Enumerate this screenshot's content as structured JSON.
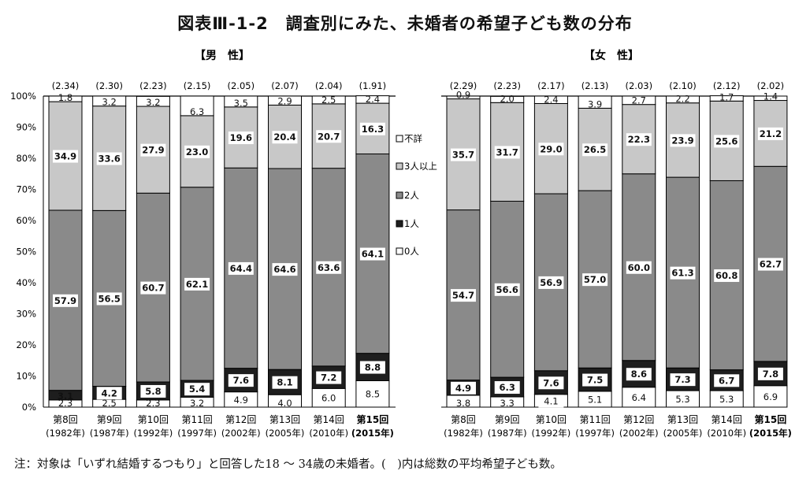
{
  "figure": {
    "title": "図表Ⅲ-1-2　調査別にみた、未婚者の希望子ども数の分布",
    "note": "注：対象は「いずれ結婚するつもり」と回答した18 ～ 34歳の未婚者。(　)内は総数の平均希望子ども数。"
  },
  "chart_data": {
    "type": "bar",
    "stacked": true,
    "percent": true,
    "y_ticks": [
      "0%",
      "10%",
      "20%",
      "30%",
      "40%",
      "50%",
      "60%",
      "70%",
      "80%",
      "90%",
      "100%"
    ],
    "ylim": [
      0,
      100
    ],
    "legend": [
      {
        "label": "不詳",
        "color": "#ffffff"
      },
      {
        "label": "3人以上",
        "color": "#c8c8c8"
      },
      {
        "label": "2人",
        "color": "#8a8a8a"
      },
      {
        "label": "1人",
        "color": "#1e1e1e"
      },
      {
        "label": "0人",
        "color": "#ffffff"
      }
    ],
    "panels": [
      {
        "name": "【男　性】",
        "categories": [
          {
            "line1": "第8回",
            "line2": "(1982年)",
            "bold": false
          },
          {
            "line1": "第9回",
            "line2": "(1987年)",
            "bold": false
          },
          {
            "line1": "第10回",
            "line2": "(1992年)",
            "bold": false
          },
          {
            "line1": "第11回",
            "line2": "(1997年)",
            "bold": false
          },
          {
            "line1": "第12回",
            "line2": "(2002年)",
            "bold": false
          },
          {
            "line1": "第13回",
            "line2": "(2005年)",
            "bold": false
          },
          {
            "line1": "第14回",
            "line2": "(2010年)",
            "bold": false
          },
          {
            "line1": "第15回",
            "line2": "(2015年)",
            "bold": true
          }
        ],
        "averages": [
          "(2.34)",
          "(2.30)",
          "(2.23)",
          "(2.15)",
          "(2.05)",
          "(2.07)",
          "(2.04)",
          "(1.91)"
        ],
        "series": [
          {
            "name": "0人",
            "values": [
              2.3,
              2.5,
              2.3,
              3.2,
              4.9,
              4.0,
              6.0,
              8.5
            ]
          },
          {
            "name": "1人",
            "values": [
              3.1,
              4.2,
              5.8,
              5.4,
              7.6,
              8.1,
              7.2,
              8.8
            ]
          },
          {
            "name": "2人",
            "values": [
              57.9,
              56.5,
              60.7,
              62.1,
              64.4,
              64.6,
              63.6,
              64.1
            ]
          },
          {
            "name": "3人以上",
            "values": [
              34.9,
              33.6,
              27.9,
              23.0,
              19.6,
              20.4,
              20.7,
              16.3
            ]
          },
          {
            "name": "不詳",
            "values": [
              1.8,
              3.2,
              3.2,
              6.3,
              3.5,
              2.9,
              2.5,
              2.4
            ]
          }
        ]
      },
      {
        "name": "【女　性】",
        "categories": [
          {
            "line1": "第8回",
            "line2": "(1982年)",
            "bold": false
          },
          {
            "line1": "第9回",
            "line2": "(1987年)",
            "bold": false
          },
          {
            "line1": "第10回",
            "line2": "(1992年)",
            "bold": false
          },
          {
            "line1": "第11回",
            "line2": "(1997年)",
            "bold": false
          },
          {
            "line1": "第12回",
            "line2": "(2002年)",
            "bold": false
          },
          {
            "line1": "第13回",
            "line2": "(2005年)",
            "bold": false
          },
          {
            "line1": "第14回",
            "line2": "(2010年)",
            "bold": false
          },
          {
            "line1": "第15回",
            "line2": "(2015年)",
            "bold": true
          }
        ],
        "averages": [
          "(2.29)",
          "(2.23)",
          "(2.17)",
          "(2.13)",
          "(2.03)",
          "(2.10)",
          "(2.12)",
          "(2.02)"
        ],
        "series": [
          {
            "name": "0人",
            "values": [
              3.8,
              3.3,
              4.1,
              5.1,
              6.4,
              5.3,
              5.3,
              6.9
            ]
          },
          {
            "name": "1人",
            "values": [
              4.9,
              6.3,
              7.6,
              7.5,
              8.6,
              7.3,
              6.7,
              7.8
            ]
          },
          {
            "name": "2人",
            "values": [
              54.7,
              56.6,
              56.9,
              57.0,
              60.0,
              61.3,
              60.8,
              62.7
            ]
          },
          {
            "name": "3人以上",
            "values": [
              35.7,
              31.7,
              29.0,
              26.5,
              22.3,
              23.9,
              25.6,
              21.2
            ]
          },
          {
            "name": "不詳",
            "values": [
              0.9,
              2.0,
              2.4,
              3.9,
              2.7,
              2.2,
              1.7,
              1.4
            ]
          }
        ]
      }
    ]
  }
}
